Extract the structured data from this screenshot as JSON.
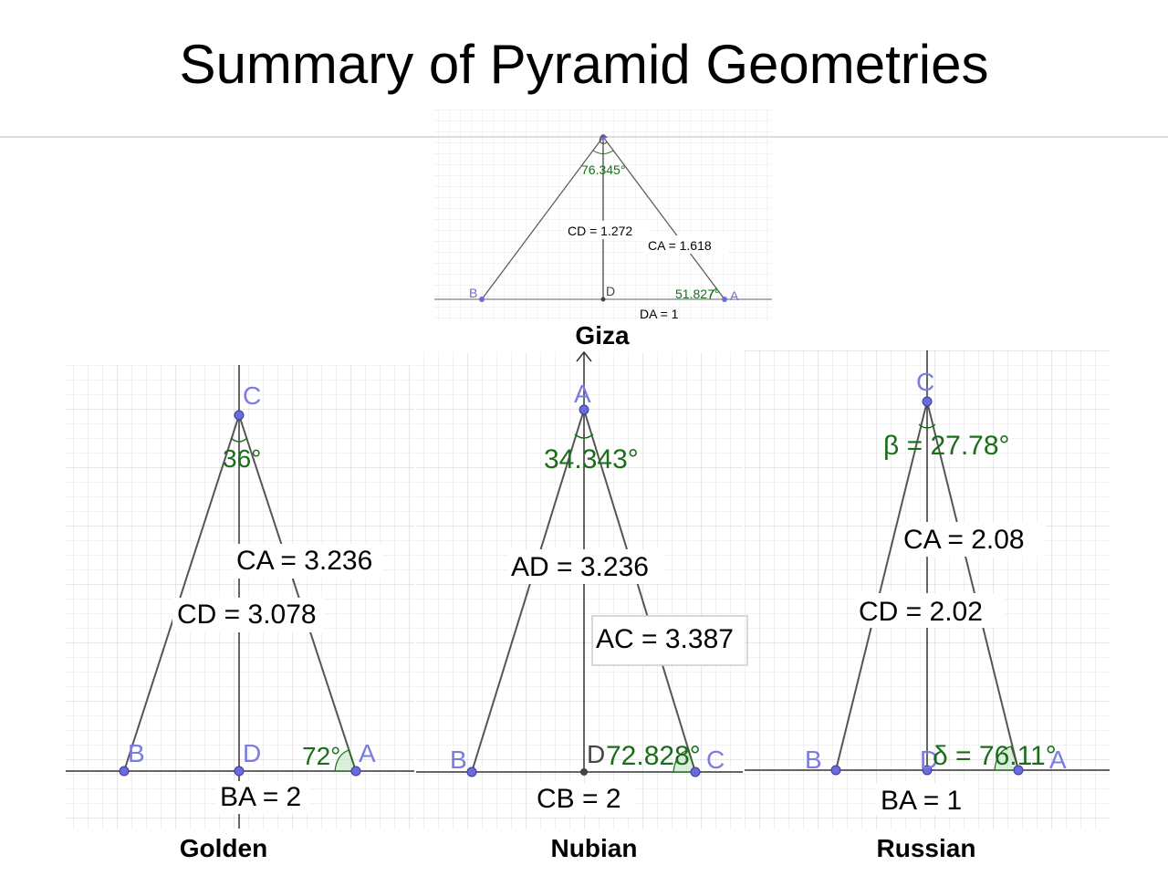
{
  "title": "Summary of Pyramid Geometries",
  "colors": {
    "point": "#6b6bdc",
    "angle": "#1a6e1a",
    "segment": "#555555",
    "grid": "#dddddd"
  },
  "giza": {
    "caption": "Giza",
    "labels": {
      "apex": "C",
      "left": "B",
      "foot": "D",
      "right": "A"
    },
    "apex_angle": "76.345°",
    "base_angle": "51.827°",
    "height": "CD = 1.272",
    "slant": "CA = 1.618",
    "base": "DA = 1"
  },
  "golden": {
    "caption": "Golden",
    "labels": {
      "apex": "C",
      "left": "B",
      "foot": "D",
      "right": "A"
    },
    "apex_angle": "36°",
    "base_angle": "72°",
    "slant": "CA = 3.236",
    "height": "CD = 3.078",
    "base": "BA = 2"
  },
  "nubian": {
    "caption": "Nubian",
    "labels": {
      "apex": "A",
      "left": "B",
      "foot": "D",
      "right": "C"
    },
    "apex_angle": "34.343°",
    "base_angle": "72.828°",
    "height": "AD = 3.236",
    "slant": "AC = 3.387",
    "base": "CB = 2"
  },
  "russian": {
    "caption": "Russian",
    "labels": {
      "apex": "C",
      "left": "B",
      "foot": "D",
      "right": "A"
    },
    "apex_angle": "β = 27.78°",
    "base_angle": "δ = 76.11°",
    "slant": "CA = 2.08",
    "height": "CD = 2.02",
    "base": "BA = 1"
  }
}
